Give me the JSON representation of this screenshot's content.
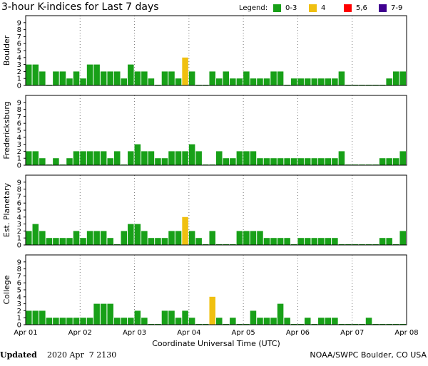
{
  "title": "3-hour K-indices for Last 7 days",
  "legend": {
    "title": "Legend:",
    "items": [
      {
        "label": "0-3",
        "color": "#18a018"
      },
      {
        "label": "4",
        "color": "#f0c010"
      },
      {
        "label": "5,6",
        "color": "#ff0000"
      },
      {
        "label": "7-9",
        "color": "#400090"
      }
    ]
  },
  "chart_data": [
    {
      "type": "bar",
      "ylabel": "Boulder",
      "ylim": [
        0,
        10
      ],
      "yticks": [
        0,
        1,
        2,
        3,
        4,
        5,
        6,
        7,
        8,
        9
      ],
      "values": [
        3,
        3,
        2,
        0,
        2,
        2,
        1,
        2,
        1,
        3,
        3,
        2,
        2,
        2,
        1,
        3,
        2,
        2,
        1,
        0,
        2,
        2,
        1,
        4,
        2,
        0,
        0,
        2,
        1,
        2,
        1,
        1,
        2,
        1,
        1,
        1,
        2,
        2,
        0,
        1,
        1,
        1,
        1,
        1,
        1,
        1,
        2,
        0,
        0,
        0,
        0,
        0,
        0,
        1,
        2,
        2
      ]
    },
    {
      "type": "bar",
      "ylabel": "Fredericksburg",
      "ylim": [
        0,
        10
      ],
      "yticks": [
        0,
        1,
        2,
        3,
        4,
        5,
        6,
        7,
        8,
        9
      ],
      "values": [
        2,
        2,
        1,
        0,
        1,
        0,
        1,
        2,
        2,
        2,
        2,
        2,
        1,
        2,
        0,
        2,
        3,
        2,
        2,
        1,
        1,
        2,
        2,
        2,
        3,
        2,
        0,
        0,
        2,
        1,
        1,
        2,
        2,
        2,
        1,
        1,
        1,
        1,
        1,
        1,
        1,
        1,
        1,
        1,
        1,
        1,
        2,
        0,
        0,
        0,
        0,
        0,
        1,
        1,
        1,
        2
      ]
    },
    {
      "type": "bar",
      "ylabel": "Est. Planetary",
      "ylim": [
        0,
        10
      ],
      "yticks": [
        0,
        1,
        2,
        3,
        4,
        5,
        6,
        7,
        8,
        9
      ],
      "values": [
        2,
        3,
        2,
        1,
        1,
        1,
        1,
        2,
        1,
        2,
        2,
        2,
        1,
        0,
        2,
        3,
        3,
        2,
        1,
        1,
        1,
        2,
        2,
        4,
        2,
        1,
        0,
        2,
        0,
        0,
        0,
        2,
        2,
        2,
        2,
        1,
        1,
        1,
        1,
        0,
        1,
        1,
        1,
        1,
        1,
        1,
        0,
        0,
        0,
        0,
        0,
        0,
        1,
        1,
        0,
        2
      ]
    },
    {
      "type": "bar",
      "ylabel": "College",
      "ylim": [
        0,
        10
      ],
      "yticks": [
        0,
        1,
        2,
        3,
        4,
        5,
        6,
        7,
        8,
        9
      ],
      "values": [
        2,
        2,
        2,
        1,
        1,
        1,
        1,
        1,
        1,
        1,
        3,
        3,
        3,
        1,
        1,
        1,
        2,
        1,
        0,
        0,
        2,
        2,
        1,
        2,
        1,
        0,
        0,
        4,
        1,
        0,
        1,
        0,
        0,
        2,
        1,
        1,
        1,
        3,
        1,
        0,
        0,
        1,
        0,
        1,
        1,
        1,
        0,
        0,
        0,
        0,
        1,
        0,
        0,
        0,
        0,
        0
      ],
      "xlim": [
        0,
        7
      ],
      "xticks": [
        {
          "value": 0,
          "label": "Apr 01"
        },
        {
          "value": 1,
          "label": "Apr 02"
        },
        {
          "value": 2,
          "label": "Apr 03"
        },
        {
          "value": 3,
          "label": "Apr 04"
        },
        {
          "value": 4,
          "label": "Apr 05"
        },
        {
          "value": 5,
          "label": "Apr 06"
        },
        {
          "value": 6,
          "label": "Apr 07"
        },
        {
          "value": 7,
          "label": "Apr 08"
        }
      ],
      "xlabel": "Coordinate Universal Time (UTC)"
    }
  ],
  "footer": {
    "updated_label": "Updated",
    "updated": "2020 Apr  7 2130",
    "source": "NOAA/SWPC Boulder, CO USA"
  }
}
